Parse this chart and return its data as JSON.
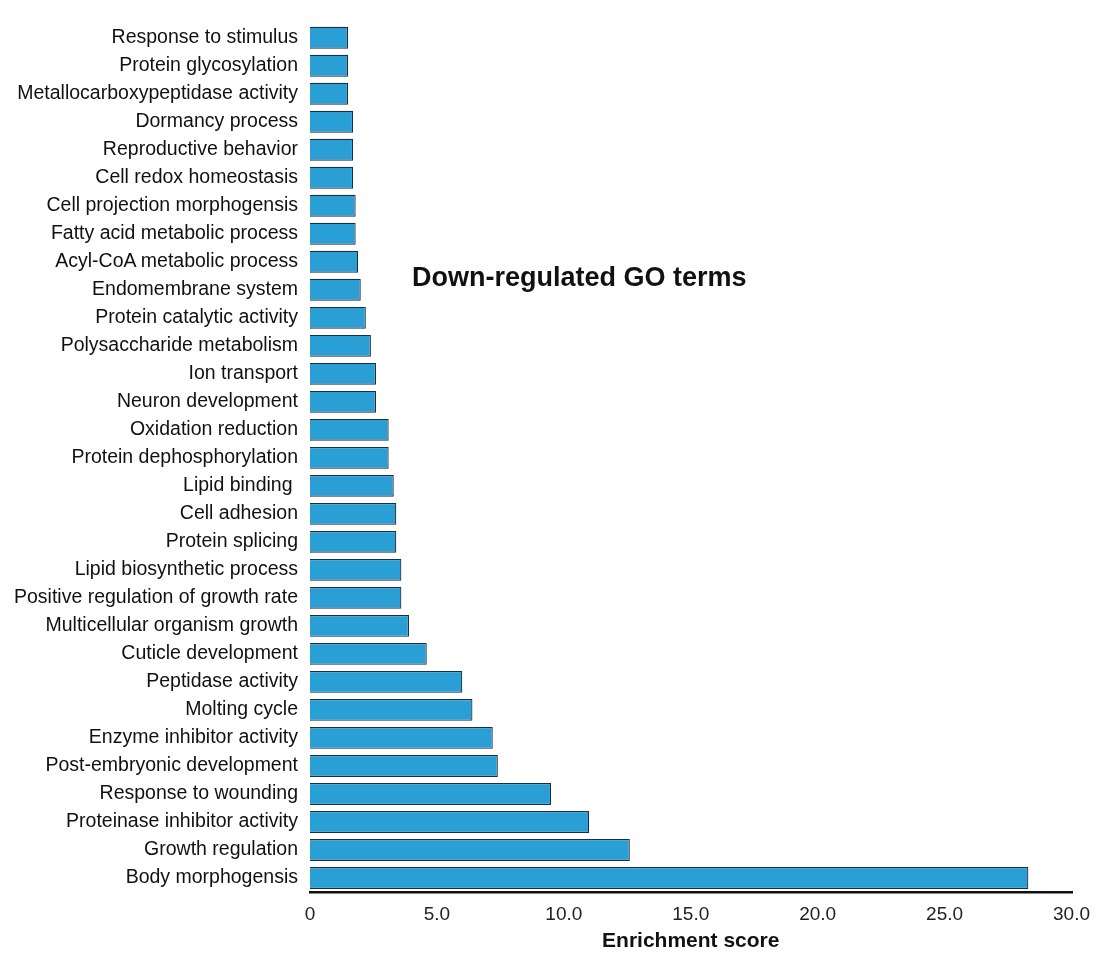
{
  "chart_data": {
    "type": "bar",
    "orientation": "horizontal",
    "title": "Down-regulated GO terms",
    "xlabel": "Enrichment score",
    "categories": [
      "Response to stimulus",
      "Protein glycosylation",
      "Metallocarboxypeptidase activity",
      "Dormancy process",
      "Reproductive behavior",
      "Cell redox homeostasis",
      "Cell projection morphogensis",
      "Fatty acid metabolic process",
      "Acyl-CoA metabolic process",
      "Endomembrane system",
      "Protein catalytic activity",
      "Polysaccharide metabolism",
      "Ion transport",
      "Neuron development",
      "Oxidation reduction",
      "Protein dephosphorylation",
      "Lipid binding ",
      "Cell adhesion",
      "Protein splicing",
      "Lipid biosynthetic process",
      "Positive regulation of growth rate",
      "Multicellular organism growth",
      "Cuticle development",
      "Peptidase activity",
      "Molting cycle",
      "Enzyme inhibitor activity",
      "Post-embryonic development",
      "Response to wounding",
      "Proteinase inhibitor activity",
      "Growth regulation",
      "Body morphogensis"
    ],
    "values": [
      1.5,
      1.5,
      1.5,
      1.7,
      1.7,
      1.7,
      1.8,
      1.8,
      1.9,
      2.0,
      2.2,
      2.4,
      2.6,
      2.6,
      3.1,
      3.1,
      3.3,
      3.4,
      3.4,
      3.6,
      3.6,
      3.9,
      4.6,
      6.0,
      6.4,
      7.2,
      7.4,
      9.5,
      11.0,
      12.6,
      28.3
    ],
    "color": "#2a9fd6",
    "xlim": [
      0,
      30
    ],
    "xticks": [
      0,
      {
        "value": 5,
        "label": "5.0"
      },
      {
        "value": 10,
        "label": "10.0"
      },
      {
        "value": 15,
        "label": "15.0"
      },
      {
        "value": 20,
        "label": "20.0"
      },
      {
        "value": 25,
        "label": "25.0"
      },
      {
        "value": 30,
        "label": "30.0"
      }
    ],
    "grid": false,
    "legend": false
  }
}
